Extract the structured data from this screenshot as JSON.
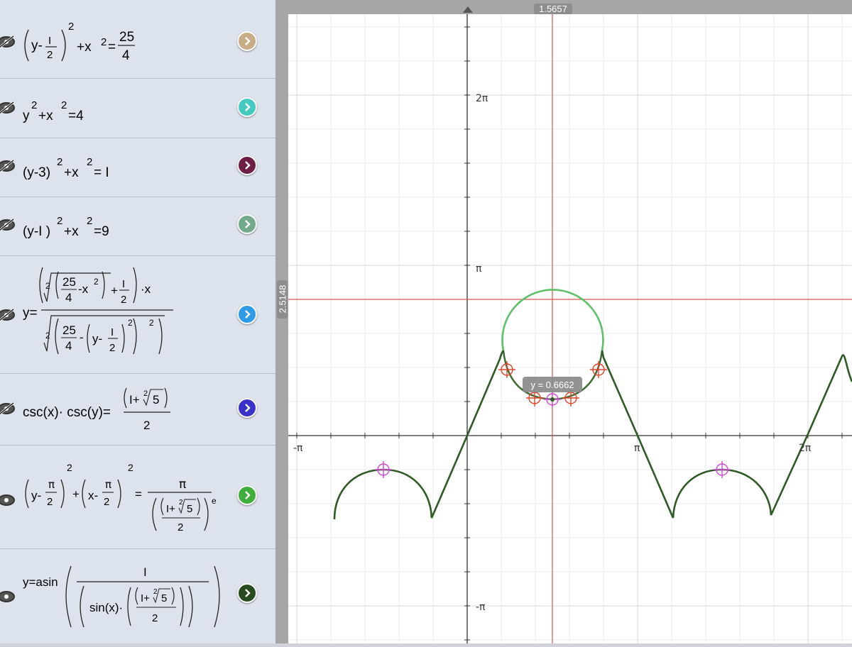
{
  "equations": [
    {
      "text": "(y-1/2)^2+x^2=25/4",
      "color": "#c7ad86"
    },
    {
      "text": "y^2+x^2=4",
      "color": "#45c9c1"
    },
    {
      "text": "(y-3)^2+x^2=1",
      "color": "#6e1d45"
    },
    {
      "text": "(y-1)^2+x^2=9",
      "color": "#73a98d"
    },
    {
      "text": "y=((25/4-x^2)^(1/2)+1/2)·x / (25/4-(y-1/2)^2)^(1/2)",
      "color": "#2f9ae6"
    },
    {
      "text": "csc(x)·csc(y)=(1+∜5)/2",
      "color": "#3a31c8"
    },
    {
      "text": "(y-π/2)^2+(x-π/2)^2=π/((1+∜5)/2)^e",
      "color": "#3fae3b"
    },
    {
      "text": "y=asin(1/(sin(x)·((1+∜5)/2)))",
      "color": "#284a1f"
    }
  ],
  "graph": {
    "crosshair_x_readout": "1.5657",
    "crosshair_y_readout": "2.5148",
    "point_tooltip": "y = 0.6662",
    "x_tick_labels": [
      "-π",
      "π",
      "2π"
    ],
    "y_tick_labels": [
      "2π",
      "π",
      "-π"
    ]
  }
}
